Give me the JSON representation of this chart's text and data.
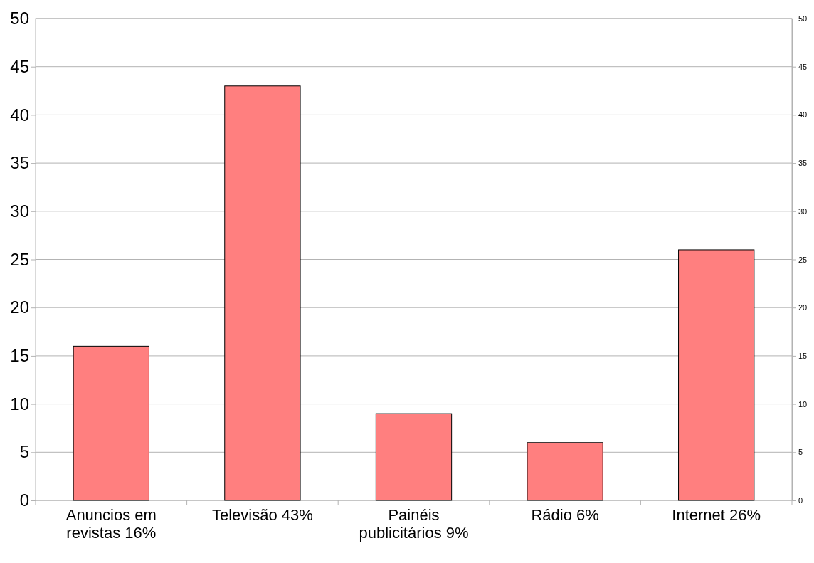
{
  "chart_data": {
    "type": "bar",
    "categories": [
      "Anuncios em revistas 16%",
      "Televisão 43%",
      "Painéis publicitários 9%",
      "Rádio 6%",
      "Internet 26%"
    ],
    "values": [
      16,
      43,
      9,
      6,
      26
    ],
    "color": "#ff7f7f",
    "ylim": [
      0,
      50
    ],
    "yticks": [
      0,
      5,
      10,
      15,
      20,
      25,
      30,
      35,
      40,
      45,
      50
    ],
    "y2lim": [
      0,
      50
    ],
    "y2ticks": [
      0,
      5,
      10,
      15,
      20,
      25,
      30,
      35,
      40,
      45,
      50
    ],
    "grid": "y"
  }
}
